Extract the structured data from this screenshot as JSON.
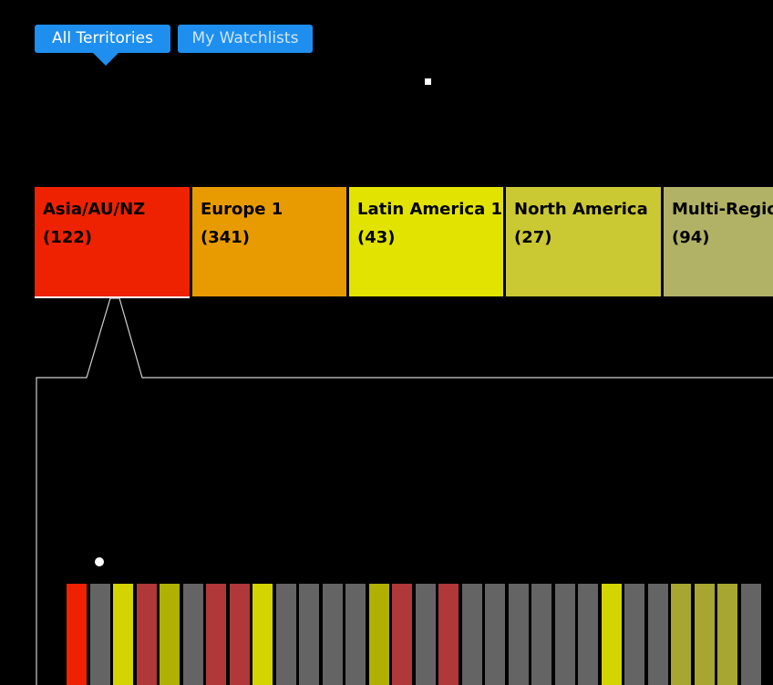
{
  "tabs": {
    "all_territories": "All Territories",
    "my_watchlists": "My Watchlists"
  },
  "regions": [
    {
      "name": "Asia/AU/NZ",
      "count": "(122)",
      "color": "#ee2200"
    },
    {
      "name": "Europe 1",
      "count": "(341)",
      "color": "#e89b00"
    },
    {
      "name": "Latin America 1",
      "count": "(43)",
      "color": "#e3e300"
    },
    {
      "name": "North America",
      "count": "(27)",
      "color": "#cbc933"
    },
    {
      "name": "Multi-Region",
      "count": "(94)",
      "color": "#b2b267"
    }
  ],
  "territory_bars": {
    "colors": [
      "#ee2200",
      "#646464",
      "#d4d400",
      "#b03838",
      "#b0b000",
      "#646464",
      "#b03838",
      "#b03838",
      "#d4d400",
      "#646464",
      "#646464",
      "#646464",
      "#646464",
      "#b0b000",
      "#b03838",
      "#646464",
      "#b03838",
      "#646464",
      "#646464",
      "#646464",
      "#646464",
      "#646464",
      "#646464",
      "#d4d400",
      "#646464",
      "#646464",
      "#a6a630",
      "#a6a630",
      "#a6a630",
      "#646464",
      "#a6a630"
    ]
  },
  "colors": {
    "accent": "#1e8fef",
    "background": "#000000",
    "outline": "#cfcfcf"
  }
}
